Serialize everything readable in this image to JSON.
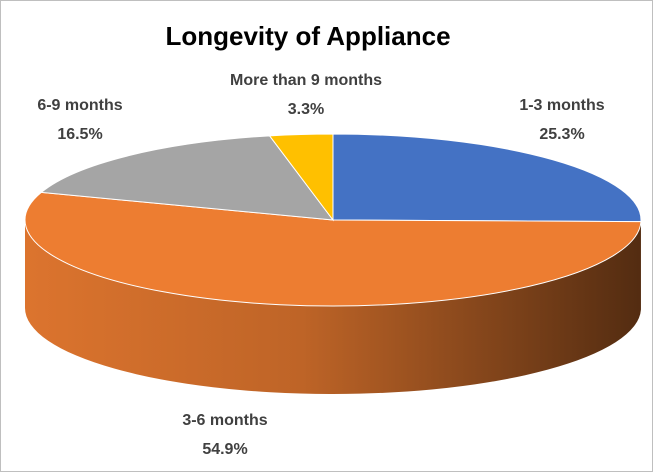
{
  "chart_data": {
    "type": "pie3d",
    "title": "Longevity of Appliance",
    "categories": [
      "1-3 months",
      "3-6 months",
      "6-9 months",
      "More than 9 months"
    ],
    "values": [
      25.3,
      54.9,
      16.5,
      3.3
    ],
    "value_labels": [
      "25.3%",
      "54.9%",
      "16.5%",
      "3.3%"
    ],
    "colors": [
      "#4472c4",
      "#ed7d31",
      "#a5a5a5",
      "#ffc000"
    ]
  }
}
